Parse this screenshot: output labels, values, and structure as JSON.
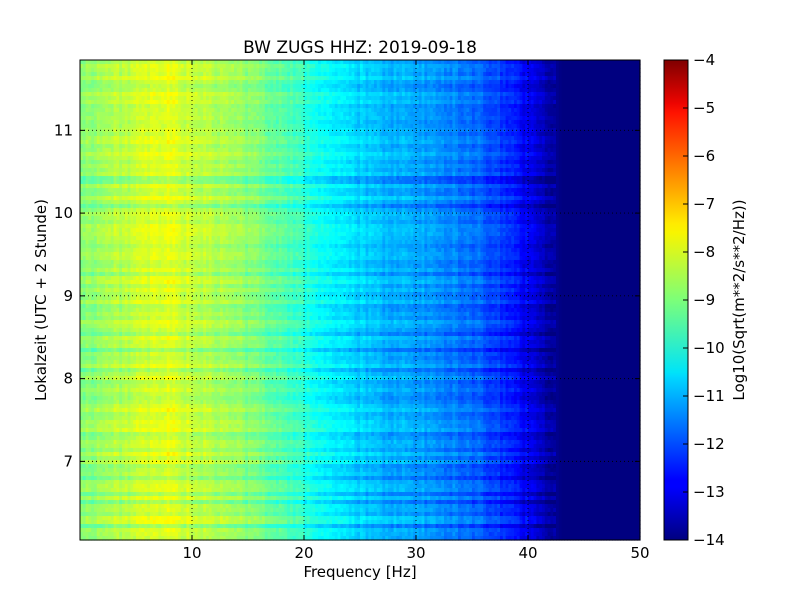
{
  "chart_data": {
    "type": "heatmap",
    "title": "BW ZUGS HHZ: 2019-09-18",
    "xlabel": "Frequency [Hz]",
    "ylabel": "Lokalzeit (UTC + 2 Stunde)",
    "colorbar_label": "Log10(Sqrt(m**2/s**2/Hz))",
    "xlim": [
      0,
      50
    ],
    "ylim": [
      11.85,
      6.05
    ],
    "x_ticks": [
      10,
      20,
      30,
      40,
      50
    ],
    "y_ticks": [
      7,
      8,
      9,
      10,
      11
    ],
    "color_range": [
      -14,
      -4
    ],
    "colorbar_ticks": [
      -4,
      -5,
      -6,
      -7,
      -8,
      -9,
      -10,
      -11,
      -12,
      -13,
      -14
    ],
    "colormap": "jet",
    "grid": true,
    "frequency_profile": {
      "frequency_hz": [
        0,
        2,
        5,
        8,
        10,
        14,
        18,
        20,
        23,
        25,
        28,
        30,
        33,
        36,
        38,
        40,
        41.5,
        42.5,
        43,
        50
      ],
      "log10_amplitude": [
        -8.9,
        -8.6,
        -8.3,
        -8.0,
        -8.3,
        -8.7,
        -9.3,
        -9.8,
        -10.4,
        -10.7,
        -11.0,
        -11.1,
        -11.4,
        -11.8,
        -12.3,
        -12.9,
        -13.4,
        -13.8,
        -14.0,
        -14.0
      ]
    }
  }
}
